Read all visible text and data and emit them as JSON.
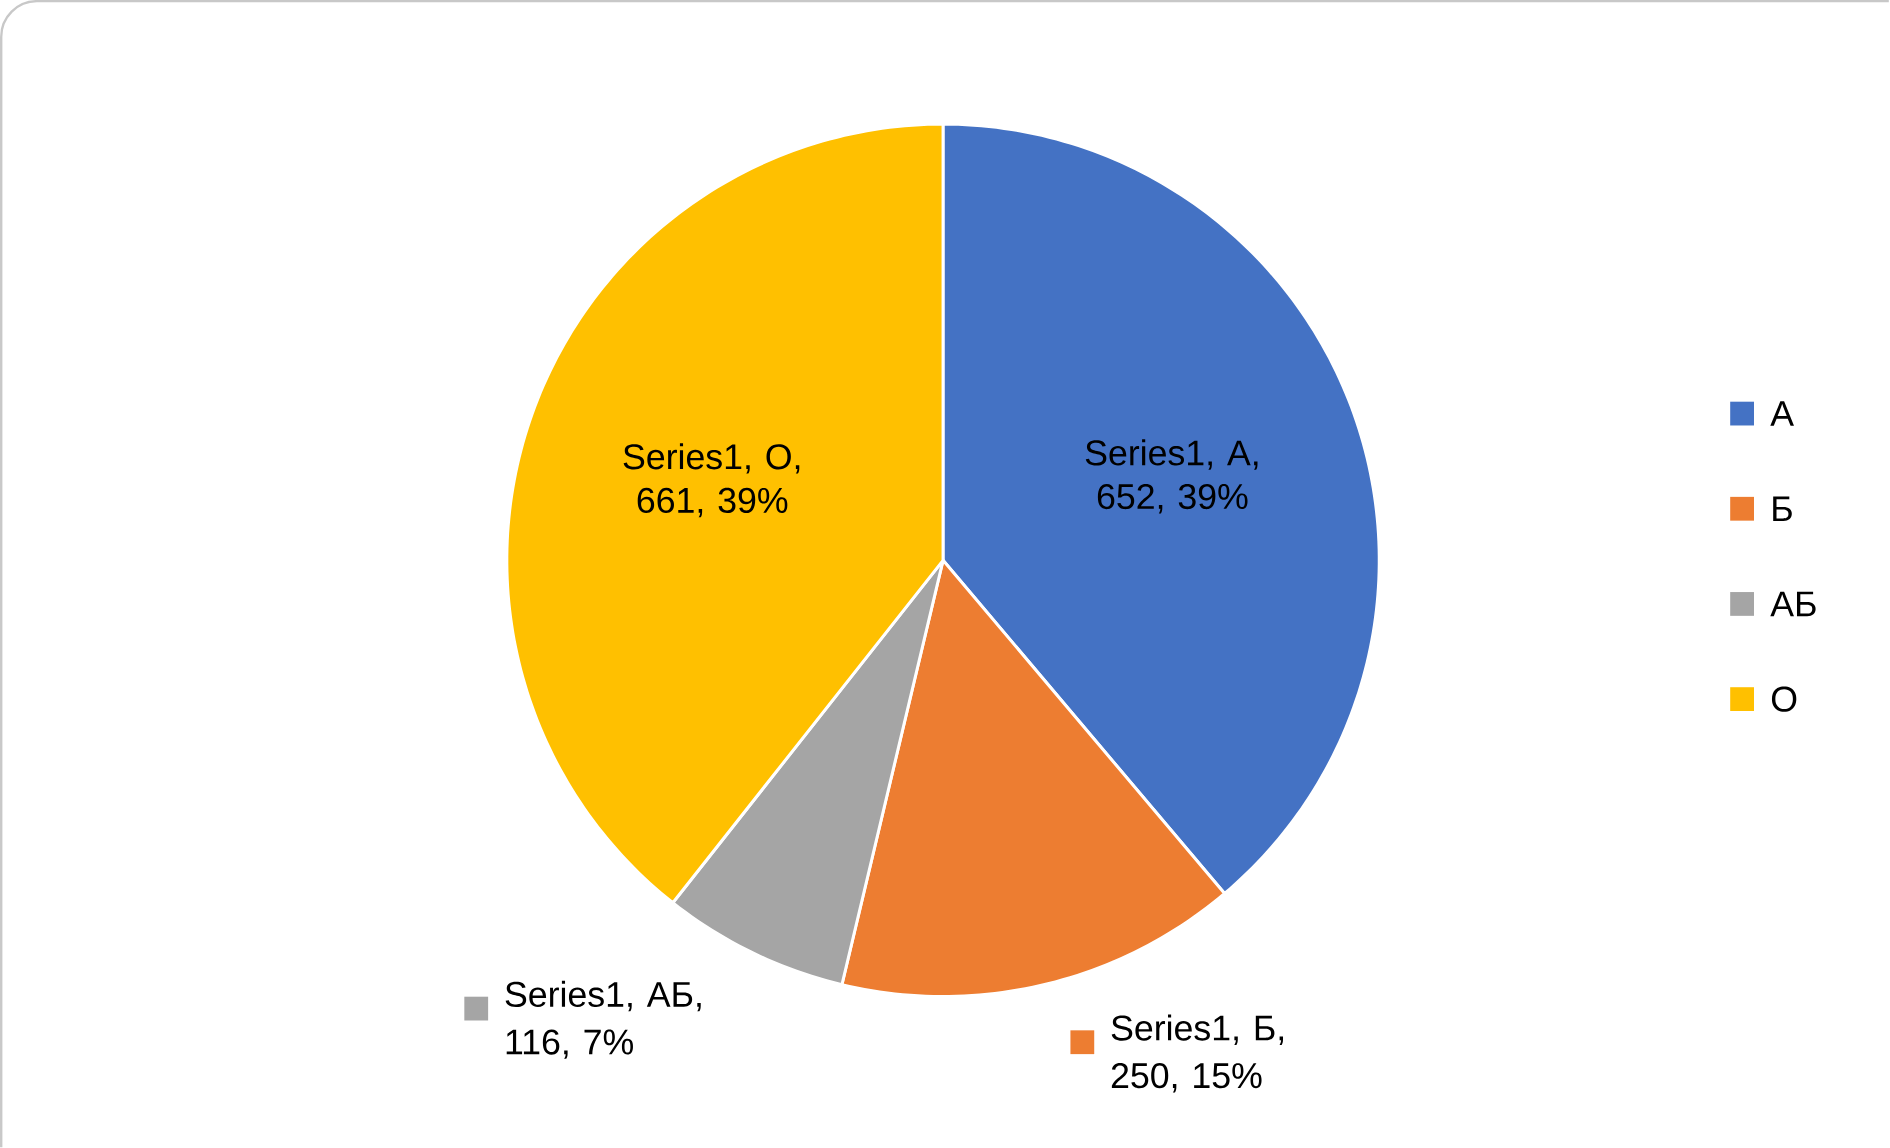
{
  "chart_data": {
    "type": "pie",
    "categories": [
      "А",
      "Б",
      "АБ",
      "О"
    ],
    "values": [
      652,
      250,
      116,
      661
    ],
    "colors": [
      "#4472c4",
      "#ed7d31",
      "#a5a5a5",
      "#ffc000"
    ],
    "value_labels": [
      "Series1, А, 652, 39%",
      "Series1, Б, 250, 15%",
      "Series1, АБ, 116, 7%",
      "Series1, О, 661, 39%"
    ],
    "legend": "right"
  }
}
